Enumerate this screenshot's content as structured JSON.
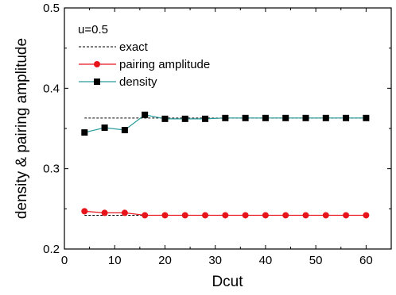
{
  "chart_data": {
    "type": "line",
    "xlabel": "Dcut",
    "ylabel": "density & pairing amplitude",
    "xlim": [
      0,
      65
    ],
    "ylim": [
      0.2,
      0.5
    ],
    "x_ticks": [
      "0",
      "10",
      "20",
      "30",
      "40",
      "50",
      "60"
    ],
    "y_ticks": [
      "0.2",
      "0.3",
      "0.4",
      "0.5"
    ],
    "annotation": "u=0.5",
    "legend_position": "top-left",
    "series": [
      {
        "name": "exact",
        "style": "dashed",
        "color": "#000000",
        "segments": [
          {
            "x": [
              4,
              60
            ],
            "y": [
              0.363,
              0.363
            ]
          },
          {
            "x": [
              4,
              60
            ],
            "y": [
              0.242,
              0.242
            ]
          }
        ]
      },
      {
        "name": "pairing amplitude",
        "style": "line-circle",
        "color": "#e8141c",
        "x": [
          4,
          8,
          12,
          16,
          20,
          24,
          28,
          32,
          36,
          40,
          44,
          48,
          52,
          56,
          60
        ],
        "y": [
          0.247,
          0.245,
          0.245,
          0.242,
          0.242,
          0.242,
          0.242,
          0.242,
          0.242,
          0.242,
          0.242,
          0.242,
          0.242,
          0.242,
          0.242
        ]
      },
      {
        "name": "density",
        "style": "line-square",
        "color": "#2a9a9a",
        "x": [
          4,
          8,
          12,
          16,
          20,
          24,
          28,
          32,
          36,
          40,
          44,
          48,
          52,
          56,
          60
        ],
        "y": [
          0.345,
          0.351,
          0.348,
          0.367,
          0.362,
          0.362,
          0.362,
          0.363,
          0.363,
          0.363,
          0.363,
          0.363,
          0.363,
          0.363,
          0.363
        ]
      }
    ]
  }
}
